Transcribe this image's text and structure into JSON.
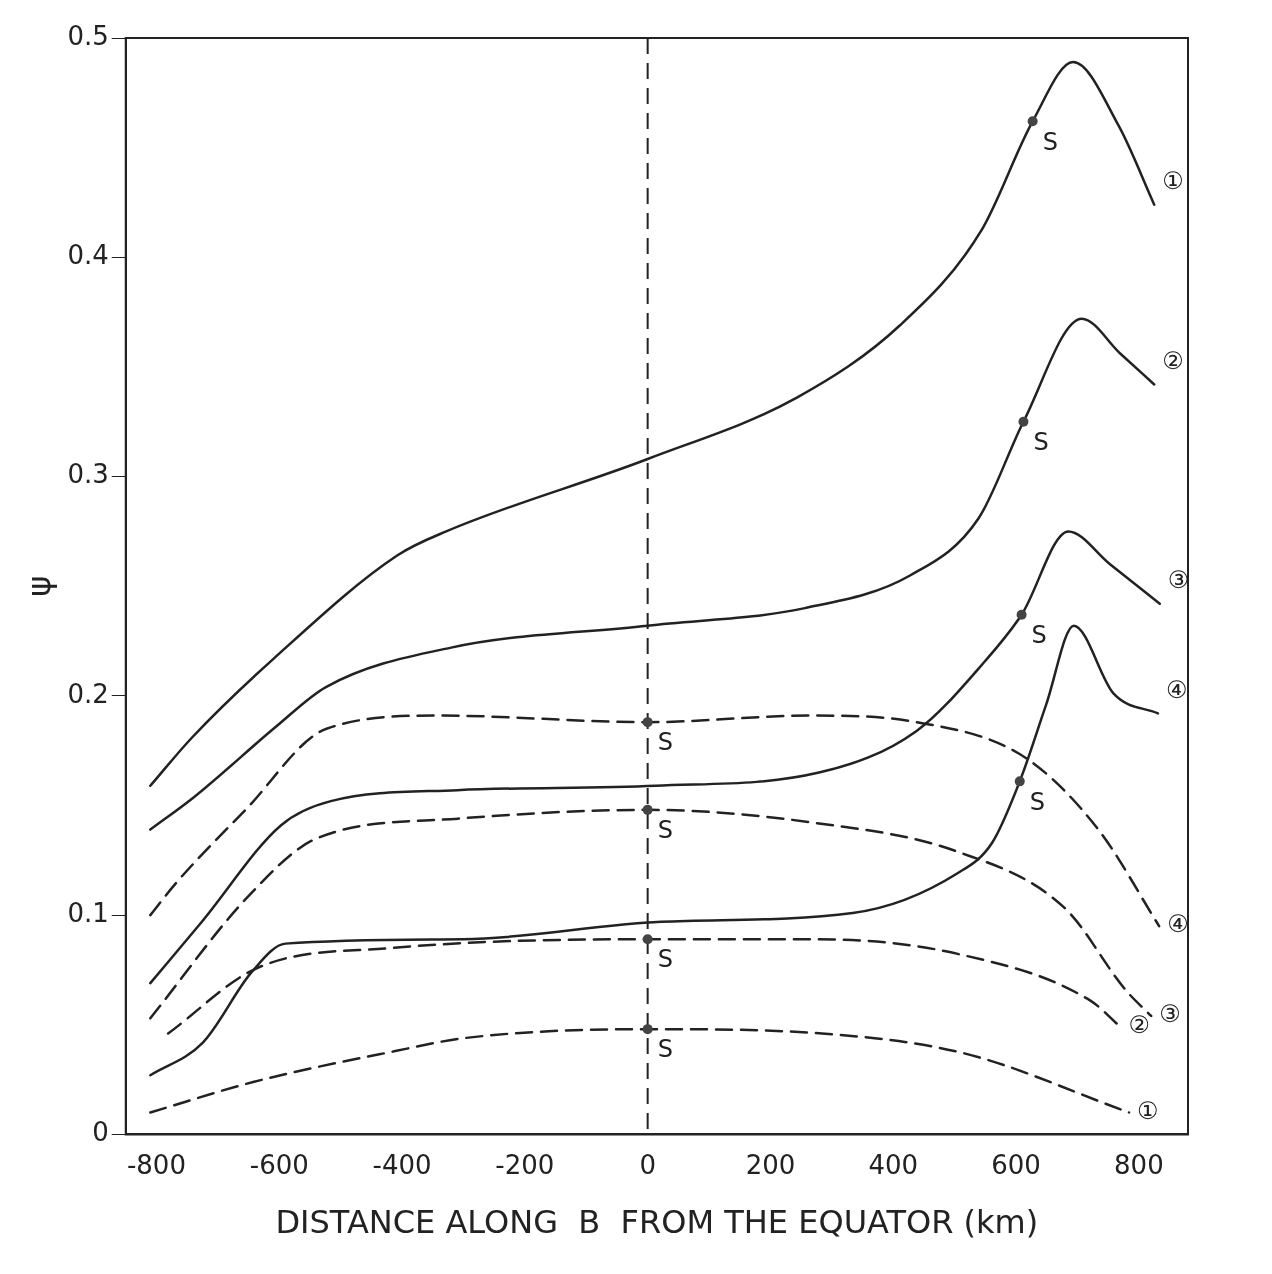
{
  "chart_data": {
    "type": "line",
    "xlabel": "DISTANCE ALONG  B  FROM THE EQUATOR (km)",
    "ylabel": "ψ",
    "xlim": [
      -850,
      880
    ],
    "xticks": [
      -800,
      -600,
      -400,
      -200,
      0,
      200,
      400,
      600,
      800
    ],
    "ylim": [
      0,
      0.5
    ],
    "yticks": [
      0,
      0.1,
      0.2,
      0.3,
      0.4,
      0.5
    ],
    "grid": false,
    "legend": false,
    "marker": "none",
    "series": [
      {
        "name": "①",
        "color": "#222222",
        "line_style": "solid",
        "x": [
          -810,
          -742,
          -609,
          -408,
          -328,
          0,
          243,
          411,
          543,
          627,
          693,
          767,
          825
        ],
        "values": [
          0.159,
          0.181,
          0.217,
          0.264,
          0.275,
          0.308,
          0.336,
          0.369,
          0.412,
          0.462,
          0.489,
          0.46,
          0.424
        ]
      },
      {
        "name": "②",
        "color": "#222222",
        "line_style": "solid",
        "x": [
          -810,
          -738,
          -605,
          -524,
          -320,
          0,
          256,
          428,
          539,
          612,
          707,
          770,
          825
        ],
        "values": [
          0.139,
          0.154,
          0.186,
          0.204,
          0.222,
          0.232,
          0.24,
          0.255,
          0.281,
          0.325,
          0.372,
          0.356,
          0.342
        ]
      },
      {
        "name": "③",
        "color": "#222222",
        "line_style": "solid",
        "x": [
          -810,
          -726,
          -597,
          -516,
          -310,
          13,
          279,
          438,
          550,
          609,
          685,
          753,
          834
        ],
        "values": [
          0.069,
          0.097,
          0.141,
          0.152,
          0.157,
          0.159,
          0.165,
          0.184,
          0.216,
          0.237,
          0.275,
          0.26,
          0.242
        ]
      },
      {
        "name": "④",
        "color": "#222222",
        "line_style": "solid",
        "x": [
          -810,
          -724,
          -645,
          -590,
          -300,
          22,
          334,
          504,
          561,
          606,
          649,
          694,
          759,
          831
        ],
        "values": [
          0.027,
          0.042,
          0.074,
          0.087,
          0.089,
          0.097,
          0.101,
          0.119,
          0.133,
          0.161,
          0.196,
          0.232,
          0.201,
          0.192
        ]
      },
      {
        "name": "④",
        "color": "#222222",
        "line_style": "dashed",
        "x": [
          -810,
          -767,
          -655,
          -523,
          -339,
          0,
          265,
          438,
          614,
          734,
          833
        ],
        "values": [
          0.1,
          0.115,
          0.148,
          0.185,
          0.191,
          0.188,
          0.191,
          0.188,
          0.172,
          0.139,
          0.095
        ]
      },
      {
        "name": "③",
        "color": "#222222",
        "line_style": "dashed",
        "x": [
          -810,
          -649,
          -539,
          -309,
          0,
          274,
          504,
          680,
          778,
          820
        ],
        "values": [
          0.053,
          0.109,
          0.135,
          0.144,
          0.148,
          0.142,
          0.129,
          0.103,
          0.066,
          0.054
        ]
      },
      {
        "name": "②",
        "color": "#222222",
        "line_style": "dashed",
        "x": [
          -781,
          -635,
          -416,
          0,
          279,
          510,
          721,
          770
        ],
        "values": [
          0.046,
          0.076,
          0.085,
          0.089,
          0.089,
          0.082,
          0.061,
          0.049
        ]
      },
      {
        "name": "①",
        "color": "#222222",
        "line_style": "dashed",
        "x": [
          -810,
          -641,
          -411,
          -296,
          0,
          284,
          515,
          784
        ],
        "values": [
          0.01,
          0.024,
          0.038,
          0.044,
          0.048,
          0.046,
          0.037,
          0.01
        ]
      }
    ],
    "ref_lines": [
      {
        "axis": "x",
        "value": 0,
        "label": null,
        "line_style": "dashed",
        "color": "#222222"
      }
    ],
    "annotations": [
      {
        "text": "S",
        "x": 627,
        "y": 0.462
      },
      {
        "text": "S",
        "x": 612,
        "y": 0.325
      },
      {
        "text": "S",
        "x": 609,
        "y": 0.237
      },
      {
        "text": "S",
        "x": 606,
        "y": 0.161
      },
      {
        "text": "S",
        "x": 0,
        "y": 0.188
      },
      {
        "text": "S",
        "x": 0,
        "y": 0.148
      },
      {
        "text": "S",
        "x": 0,
        "y": 0.089
      },
      {
        "text": "S",
        "x": 0,
        "y": 0.048
      }
    ]
  }
}
